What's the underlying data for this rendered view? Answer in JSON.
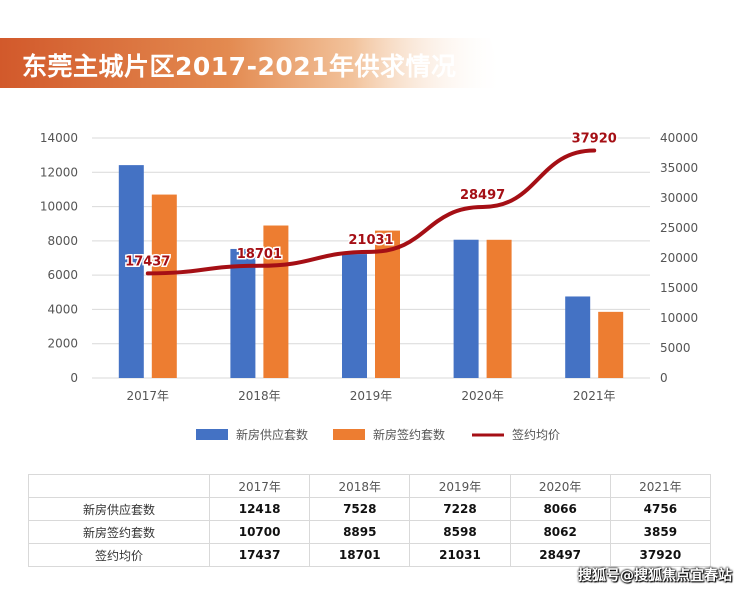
{
  "title": "东莞主城片区2017-2021年供求情况",
  "chart_data": {
    "type": "bar",
    "categories": [
      "2017年",
      "2018年",
      "2019年",
      "2020年",
      "2021年"
    ],
    "series": [
      {
        "name": "新房供应套数",
        "kind": "bar",
        "axis": "left",
        "color": "#4472c4",
        "values": [
          12418,
          7528,
          7228,
          8066,
          4756
        ]
      },
      {
        "name": "新房签约套数",
        "kind": "bar",
        "axis": "left",
        "color": "#ed7d31",
        "values": [
          10700,
          8895,
          8598,
          8062,
          3859
        ]
      },
      {
        "name": "签约均价",
        "kind": "line",
        "axis": "right",
        "color": "#a50f15",
        "values": [
          17437,
          18701,
          21031,
          28497,
          37920
        ]
      }
    ],
    "y_left": {
      "min": 0,
      "max": 14000,
      "ticks": [
        0,
        2000,
        4000,
        6000,
        8000,
        10000,
        12000,
        14000
      ]
    },
    "y_right": {
      "min": 0,
      "max": 40000,
      "ticks": [
        0,
        5000,
        10000,
        15000,
        20000,
        25000,
        30000,
        35000,
        40000
      ]
    },
    "line_labels": [
      "17437",
      "18701",
      "21031",
      "28497",
      "37920"
    ],
    "legend_position": "bottom"
  },
  "table": {
    "header": [
      "",
      "2017年",
      "2018年",
      "2019年",
      "2020年",
      "2021年"
    ],
    "rows": [
      {
        "label": "新房供应套数",
        "values": [
          "12418",
          "7528",
          "7228",
          "8066",
          "4756"
        ]
      },
      {
        "label": "新房签约套数",
        "values": [
          "10700",
          "8895",
          "8598",
          "8062",
          "3859"
        ]
      },
      {
        "label": "签约均价",
        "values": [
          "17437",
          "18701",
          "21031",
          "28497",
          "37920"
        ]
      }
    ]
  },
  "watermark": "搜狐号@搜狐焦点宜春站"
}
